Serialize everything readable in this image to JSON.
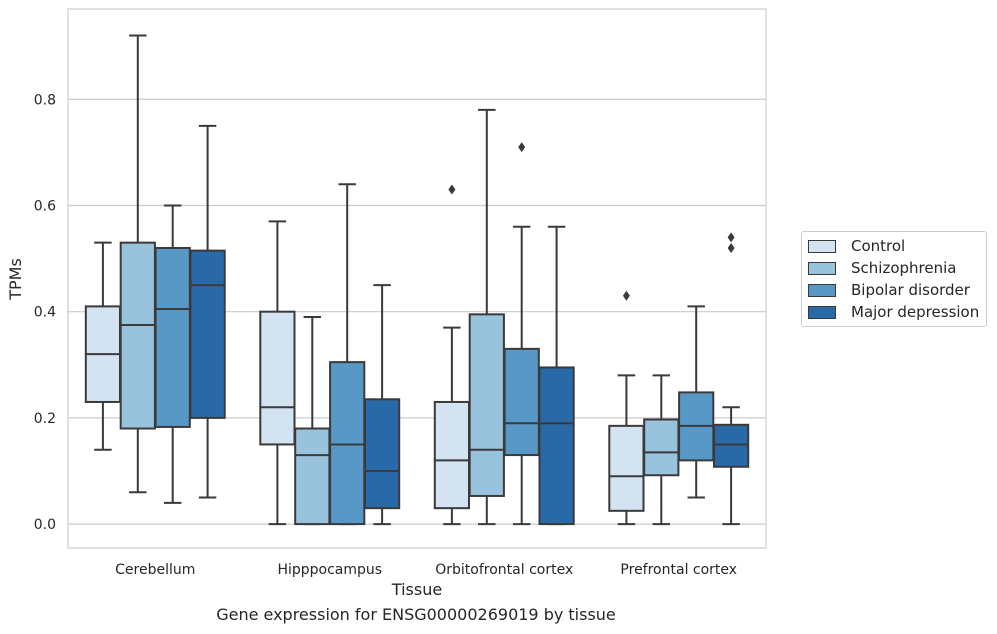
{
  "caption": "Gene expression for ENSG00000269019 by tissue",
  "chart_data": {
    "type": "boxplot",
    "xlabel": "Tissue",
    "ylabel": "TPMs",
    "ylim": [
      -0.045,
      0.97
    ],
    "yticks": [
      0.0,
      0.2,
      0.4,
      0.6,
      0.8
    ],
    "ytick_labels": [
      "0.0",
      "0.2",
      "0.4",
      "0.6",
      "0.8"
    ],
    "grid": "horizontal",
    "legend_position": "right",
    "categories": [
      "Cerebellum",
      "Hipppocampus",
      "Orbitofrontal cortex",
      "Prefrontal cortex"
    ],
    "series": [
      {
        "name": "Control",
        "color": "#d4e3f1",
        "boxes": [
          {
            "whislo": 0.14,
            "q1": 0.23,
            "med": 0.32,
            "q3": 0.41,
            "whishi": 0.53,
            "fliers": []
          },
          {
            "whislo": 0.0,
            "q1": 0.15,
            "med": 0.22,
            "q3": 0.4,
            "whishi": 0.57,
            "fliers": []
          },
          {
            "whislo": 0.0,
            "q1": 0.03,
            "med": 0.12,
            "q3": 0.23,
            "whishi": 0.37,
            "fliers": [
              0.63
            ]
          },
          {
            "whislo": 0.0,
            "q1": 0.025,
            "med": 0.09,
            "q3": 0.185,
            "whishi": 0.28,
            "fliers": [
              0.43
            ]
          }
        ]
      },
      {
        "name": "Schizophrenia",
        "color": "#99c3dd",
        "boxes": [
          {
            "whislo": 0.06,
            "q1": 0.18,
            "med": 0.375,
            "q3": 0.53,
            "whishi": 0.92,
            "fliers": []
          },
          {
            "whislo": 0.0,
            "q1": 0.0,
            "med": 0.13,
            "q3": 0.18,
            "whishi": 0.39,
            "fliers": []
          },
          {
            "whislo": 0.0,
            "q1": 0.053,
            "med": 0.14,
            "q3": 0.395,
            "whishi": 0.78,
            "fliers": []
          },
          {
            "whislo": 0.0,
            "q1": 0.092,
            "med": 0.135,
            "q3": 0.197,
            "whishi": 0.28,
            "fliers": []
          }
        ]
      },
      {
        "name": "Bipolar disorder",
        "color": "#5898c7",
        "boxes": [
          {
            "whislo": 0.04,
            "q1": 0.183,
            "med": 0.405,
            "q3": 0.52,
            "whishi": 0.6,
            "fliers": []
          },
          {
            "whislo": 0.0,
            "q1": 0.0,
            "med": 0.15,
            "q3": 0.305,
            "whishi": 0.64,
            "fliers": []
          },
          {
            "whislo": 0.0,
            "q1": 0.13,
            "med": 0.19,
            "q3": 0.33,
            "whishi": 0.56,
            "fliers": [
              0.71
            ]
          },
          {
            "whislo": 0.05,
            "q1": 0.12,
            "med": 0.185,
            "q3": 0.248,
            "whishi": 0.41,
            "fliers": []
          }
        ]
      },
      {
        "name": "Major depression",
        "color": "#2a69a8",
        "boxes": [
          {
            "whislo": 0.05,
            "q1": 0.2,
            "med": 0.45,
            "q3": 0.515,
            "whishi": 0.75,
            "fliers": []
          },
          {
            "whislo": 0.0,
            "q1": 0.03,
            "med": 0.1,
            "q3": 0.235,
            "whishi": 0.45,
            "fliers": []
          },
          {
            "whislo": 0.0,
            "q1": 0.0,
            "med": 0.19,
            "q3": 0.295,
            "whishi": 0.56,
            "fliers": []
          },
          {
            "whislo": 0.0,
            "q1": 0.108,
            "med": 0.15,
            "q3": 0.187,
            "whishi": 0.22,
            "fliers": [
              0.52,
              0.54
            ]
          }
        ]
      }
    ]
  }
}
